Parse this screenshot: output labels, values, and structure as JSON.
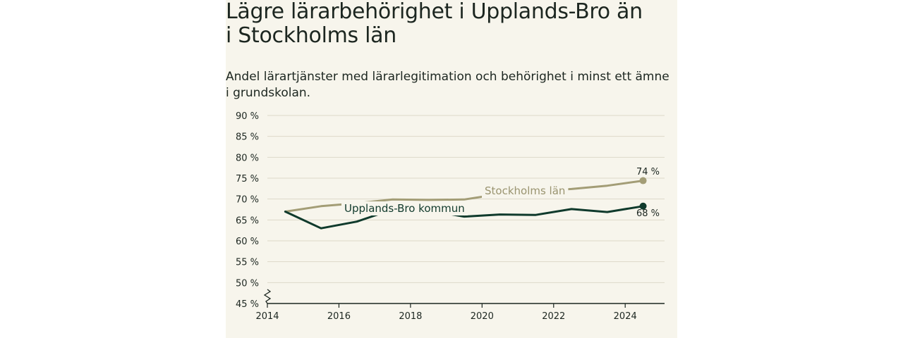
{
  "header": {
    "title": "Lägre lärarbehörighet i Upplands-Bro än i Stockholms län",
    "subtitle": "Andel lärartjänster med lärarlegitimation och behörighet i minst ett ämne i grundskolan."
  },
  "chart_data": {
    "type": "line",
    "x": [
      2014.5,
      2015.5,
      2016.5,
      2017.5,
      2018.5,
      2019.5,
      2020.5,
      2021.5,
      2022.5,
      2023.5,
      2024.5
    ],
    "series": [
      {
        "name": "Stockholms län",
        "values": [
          67.0,
          68.3,
          69.0,
          69.9,
          69.8,
          69.9,
          71.2,
          71.9,
          72.4,
          73.2,
          74.4
        ],
        "color": "#a39d76",
        "end_label": "74 %"
      },
      {
        "name": "Upplands-Bro kommun",
        "values": [
          67.0,
          63.0,
          64.6,
          67.5,
          67.3,
          65.8,
          66.3,
          66.2,
          67.6,
          66.9,
          68.3
        ],
        "color": "#0f3a2c",
        "end_label": "68 %"
      }
    ],
    "y_ticks": [
      "90 %",
      "85 %",
      "80 %",
      "75 %",
      "70 %",
      "65 %",
      "60 %",
      "55 %",
      "50 %",
      "45 %"
    ],
    "y_tick_values": [
      90,
      85,
      80,
      75,
      70,
      65,
      60,
      55,
      50,
      45
    ],
    "x_ticks": [
      "2014",
      "2016",
      "2018",
      "2020",
      "2022",
      "2024"
    ],
    "x_tick_values": [
      2014,
      2016,
      2018,
      2020,
      2022,
      2024
    ],
    "ylim": [
      45,
      90
    ],
    "xlim": [
      2014,
      2025.1
    ],
    "axis_break": true,
    "grid": true,
    "legend": "inline labels"
  }
}
